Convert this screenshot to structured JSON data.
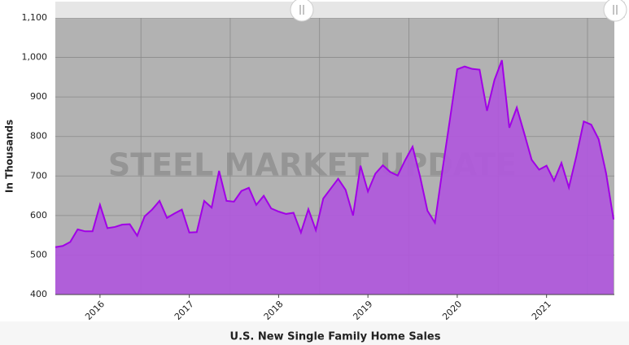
{
  "chart_data": {
    "type": "area",
    "title": "U.S. New Single Family Home Sales",
    "y_label": "In Thousands",
    "watermark": "STEEL MARKET UPDATE",
    "categories": [
      null,
      null,
      null,
      null,
      null,
      null,
      "2016",
      null,
      null,
      null,
      null,
      null,
      null,
      null,
      null,
      null,
      null,
      null,
      "2017",
      null,
      null,
      null,
      null,
      null,
      null,
      null,
      null,
      null,
      null,
      null,
      "2018",
      null,
      null,
      null,
      null,
      null,
      null,
      null,
      null,
      null,
      null,
      null,
      "2019",
      null,
      null,
      null,
      null,
      null,
      null,
      null,
      null,
      null,
      null,
      null,
      "2020",
      null,
      null,
      null,
      null,
      null,
      null,
      null,
      null,
      null,
      null,
      null,
      "2021",
      null,
      null,
      null,
      null,
      null,
      null,
      null,
      null,
      null
    ],
    "series": [
      {
        "name": "U.S. New Single Family Home Sales",
        "color": "#a100e6",
        "fill": "#b058dc",
        "values": [
          520,
          523,
          533,
          565,
          560,
          560,
          627,
          568,
          571,
          577,
          578,
          549,
          598,
          615,
          637,
          594,
          605,
          615,
          557,
          558,
          637,
          620,
          713,
          637,
          635,
          662,
          670,
          627,
          650,
          618,
          610,
          604,
          607,
          557,
          616,
          563,
          643,
          668,
          693,
          665,
          600,
          726,
          661,
          706,
          727,
          710,
          701,
          740,
          774,
          699,
          612,
          582,
          714,
          841,
          970,
          977,
          971,
          969,
          865,
          943,
          993,
          822,
          873,
          808,
          741,
          716,
          726,
          688,
          733,
          671,
          750,
          838,
          830,
          793,
          707,
          590
        ]
      }
    ],
    "ylim": [
      400,
      1100
    ],
    "yticks": [
      400,
      500,
      600,
      700,
      800,
      900,
      {
        "value": 1000,
        "label": "1,000"
      },
      {
        "value": 1100,
        "label": "1,100"
      }
    ],
    "grid": true
  }
}
